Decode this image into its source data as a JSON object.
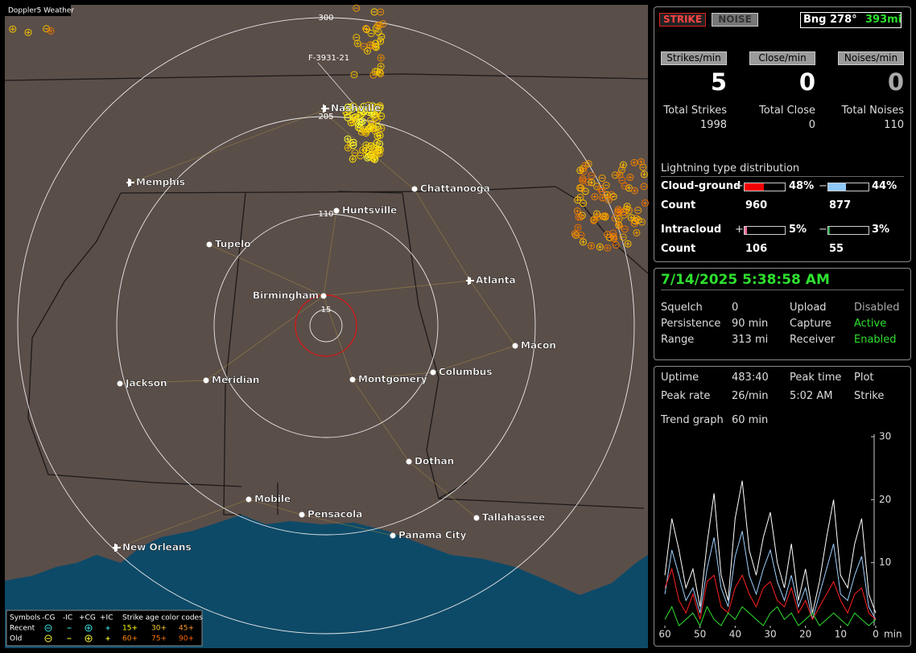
{
  "map": {
    "title": "Doppler5 Weather",
    "ring_labels": [
      "300",
      "205",
      "110",
      "15"
    ],
    "track_label": "F-3931-21",
    "cities": [
      "Nashville",
      "Memphis",
      "Chattanooga",
      "Huntsville",
      "Tupelo",
      "Atlanta",
      "Birmingham",
      "Macon",
      "Columbus",
      "Jackson",
      "Meridian",
      "Montgomery",
      "Dothan",
      "Mobile",
      "Pensacola",
      "Tallahassee",
      "Panama City",
      "New Orleans"
    ]
  },
  "legend": {
    "header": [
      "Symbols",
      "-CG",
      "-IC",
      "+CG",
      "+IC",
      "Strike age color codes"
    ],
    "rows": [
      {
        "label": "Recent",
        "ages": [
          "15+",
          "30+",
          "45+"
        ]
      },
      {
        "label": "Old",
        "ages": [
          "60+",
          "75+",
          "90+"
        ]
      }
    ]
  },
  "header": {
    "strike": "STRIKE",
    "noise": "NOISE",
    "bearing": "Bng 278°",
    "distance": "393mi"
  },
  "rates": [
    {
      "label": "Strikes/min",
      "value": 5,
      "total_label": "Total Strikes",
      "total": 1998
    },
    {
      "label": "Close/min",
      "value": 0,
      "total_label": "Total Close",
      "total": 0
    },
    {
      "label": "Noises/min",
      "value": 0,
      "total_label": "Total Noises",
      "total": 110
    }
  ],
  "distribution": {
    "title": "Lightning type distribution",
    "count_label": "Count",
    "signs": [
      "+",
      "−"
    ],
    "rows": [
      {
        "label": "Cloud-ground",
        "pos": {
          "value": 48,
          "label": "48%"
        },
        "neg": {
          "value": 44,
          "label": "44%"
        },
        "pos_count": 960,
        "neg_count": 877
      },
      {
        "label": "Intracloud",
        "pos": {
          "value": 5,
          "label": "5%"
        },
        "neg": {
          "value": 3,
          "label": "3%"
        },
        "pos_count": 106,
        "neg_count": 55
      }
    ]
  },
  "status": {
    "datetime": "7/14/2025 5:38:58 AM",
    "rows": [
      [
        "Squelch",
        "0",
        "Upload",
        "Disabled"
      ],
      [
        "Persistence",
        "90 min",
        "Capture",
        "Active"
      ],
      [
        "Range",
        "313 mi",
        "Receiver",
        "Enabled"
      ]
    ]
  },
  "stats": {
    "rows": [
      [
        "Uptime",
        "483:40",
        "Peak time",
        "Plot"
      ],
      [
        "Peak rate",
        "26/min",
        "5:02 AM",
        "Strike"
      ]
    ],
    "trend_label": "Trend graph",
    "trend_window": "60 min"
  },
  "trend": {
    "x": [
      60,
      58,
      56,
      54,
      52,
      50,
      48,
      46,
      44,
      42,
      40,
      38,
      36,
      34,
      32,
      30,
      28,
      26,
      24,
      22,
      20,
      18,
      16,
      14,
      12,
      10,
      8,
      6,
      4,
      2,
      0
    ],
    "xlim": [
      60,
      0
    ],
    "xticks": [
      60,
      50,
      40,
      30,
      20,
      10,
      0
    ],
    "x_unit": "min",
    "ylim": [
      0,
      30
    ],
    "yticks": [
      10,
      20,
      30
    ],
    "series": [
      {
        "color": "#ffffff",
        "values": [
          8,
          17,
          12,
          6,
          9,
          3,
          13,
          21,
          8,
          4,
          17,
          23,
          12,
          8,
          14,
          18,
          10,
          6,
          13,
          4,
          9,
          2,
          7,
          14,
          20,
          8,
          6,
          13,
          17,
          5,
          2
        ]
      },
      {
        "color": "#9fd0ff",
        "values": [
          5,
          12,
          8,
          4,
          6,
          2,
          9,
          14,
          6,
          3,
          11,
          15,
          8,
          5,
          9,
          12,
          7,
          4,
          8,
          3,
          6,
          1,
          5,
          9,
          13,
          5,
          4,
          8,
          11,
          3,
          1
        ]
      },
      {
        "color": "#ff2020",
        "values": [
          6,
          9,
          4,
          2,
          5,
          1,
          7,
          8,
          3,
          2,
          6,
          8,
          5,
          3,
          6,
          7,
          4,
          3,
          6,
          2,
          4,
          1,
          3,
          5,
          7,
          4,
          2,
          5,
          6,
          2,
          1
        ]
      },
      {
        "color": "#30e030",
        "values": [
          1,
          3,
          0,
          1,
          2,
          0,
          3,
          1,
          0,
          2,
          1,
          3,
          2,
          1,
          0,
          2,
          3,
          1,
          2,
          0,
          1,
          2,
          0,
          1,
          2,
          1,
          0,
          2,
          1,
          0,
          1
        ]
      }
    ]
  }
}
